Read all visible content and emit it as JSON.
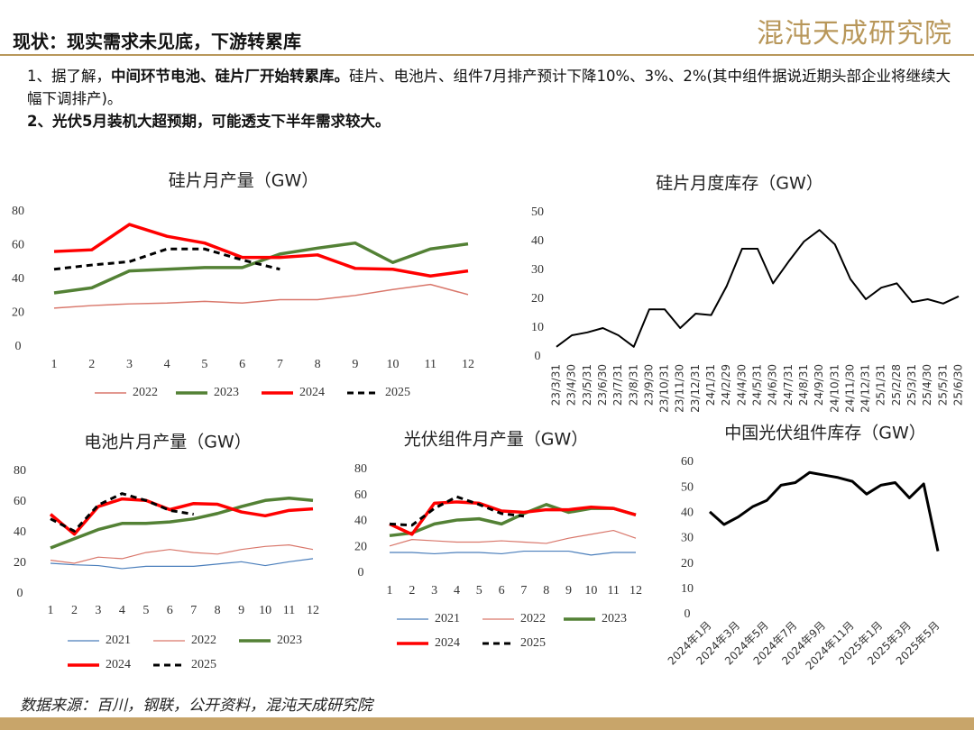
{
  "header": {
    "title": "现状：现实需求未见底，下游转累库",
    "logo": "混沌天成研究院"
  },
  "bullets": [
    {
      "parts": [
        {
          "text": "1、据了解，",
          "bold": false
        },
        {
          "text": "中间环节电池、硅片厂开始转累库。",
          "bold": true
        },
        {
          "text": "硅片、电池片、组件7月排产预计下降10%、3%、2%(其中组件据说近期头部企业将继续大幅下调排产)。",
          "bold": false
        }
      ]
    },
    {
      "parts": [
        {
          "text": "2、光伏5月装机大超预期，可能透支下半年需求较大。",
          "bold": true
        }
      ]
    }
  ],
  "source": "数据来源：百川，钢联，公开资料，混沌天成研究院",
  "chart_data": [
    {
      "type": "line",
      "title": "硅片月产量（GW）",
      "categories": [
        "1",
        "2",
        "3",
        "4",
        "5",
        "6",
        "7",
        "8",
        "9",
        "10",
        "11",
        "12"
      ],
      "ylim": [
        0,
        80
      ],
      "yticks": [
        0,
        20,
        40,
        60,
        80
      ],
      "series": [
        {
          "name": "2022",
          "color": "#d9776b",
          "values": [
            23,
            24.5,
            25.5,
            26,
            27,
            26,
            28,
            28,
            30.5,
            34,
            37,
            31
          ]
        },
        {
          "name": "2023",
          "color": "#538135",
          "values": [
            32,
            35,
            45,
            46,
            47,
            47,
            55,
            58.5,
            61.5,
            50,
            58,
            61
          ]
        },
        {
          "name": "2024",
          "color": "#ff0000",
          "values": [
            56.5,
            57.5,
            72.5,
            65.5,
            61.5,
            53,
            53,
            54.5,
            46.5,
            46,
            42,
            45
          ]
        },
        {
          "name": "2025",
          "color": "#000000",
          "dashed": true,
          "values": [
            46,
            48.5,
            50.5,
            58,
            58,
            51.5,
            46,
            null,
            null,
            null,
            null,
            null
          ]
        }
      ]
    },
    {
      "type": "line",
      "title": "硅片月度库存（GW）",
      "categories": [
        "23/3/31",
        "23/4/30",
        "23/5/31",
        "23/6/30",
        "23/7/31",
        "23/8/31",
        "23/9/30",
        "23/10/31",
        "23/11/30",
        "23/12/31",
        "24/1/31",
        "24/2/29",
        "24/4/30",
        "24/5/31",
        "24/6/30",
        "24/7/31",
        "24/8/31",
        "24/9/30",
        "24/10/31",
        "24/11/30",
        "24/12/31",
        "25/1/31",
        "25/2/28",
        "25/3/31",
        "25/4/30",
        "25/5/31",
        "25/6/30"
      ],
      "ylim": [
        0,
        50
      ],
      "yticks": [
        0,
        10,
        20,
        30,
        40,
        50
      ],
      "color": "#000000",
      "values": [
        3.5,
        7.5,
        8.5,
        10,
        7.5,
        3.5,
        16.5,
        16.5,
        10,
        15,
        14.5,
        24.5,
        37.5,
        37.5,
        25.5,
        33,
        40,
        44,
        39,
        27,
        20,
        24,
        25.5,
        19,
        20,
        18.5,
        21
      ]
    },
    {
      "type": "line",
      "title": "电池片月产量（GW）",
      "categories": [
        "1",
        "2",
        "3",
        "4",
        "5",
        "6",
        "7",
        "8",
        "9",
        "10",
        "11",
        "12"
      ],
      "ylim": [
        0,
        80
      ],
      "yticks": [
        0,
        20,
        40,
        60,
        80
      ],
      "series": [
        {
          "name": "2021",
          "color": "#4a7ebb",
          "values": [
            20,
            19,
            18.5,
            16.5,
            18,
            18,
            18,
            19.5,
            21,
            18.5,
            21,
            23
          ]
        },
        {
          "name": "2022",
          "color": "#d9776b",
          "values": [
            22,
            20,
            24,
            23,
            27,
            29,
            27,
            26,
            29,
            31,
            32,
            29
          ]
        },
        {
          "name": "2023",
          "color": "#538135",
          "values": [
            30,
            36,
            42,
            46,
            46,
            47,
            49,
            52.5,
            57,
            61,
            62.5,
            61
          ]
        },
        {
          "name": "2024",
          "color": "#ff0000",
          "values": [
            52,
            39,
            57,
            62,
            61,
            55,
            59,
            58.5,
            53.5,
            51,
            54.5,
            55.5
          ]
        },
        {
          "name": "2025",
          "color": "#000000",
          "dashed": true,
          "values": [
            49,
            41,
            58,
            65.5,
            61,
            54.5,
            52,
            null,
            null,
            null,
            null,
            null
          ]
        }
      ]
    },
    {
      "type": "line",
      "title": "光伏组件月产量（GW）",
      "categories": [
        "1",
        "2",
        "3",
        "4",
        "5",
        "6",
        "7",
        "8",
        "9",
        "10",
        "11",
        "12"
      ],
      "ylim": [
        0,
        80
      ],
      "yticks": [
        0,
        20,
        40,
        60,
        80
      ],
      "series": [
        {
          "name": "2021",
          "color": "#4a7ebb",
          "values": [
            16,
            16,
            15,
            16,
            16,
            15,
            17,
            17,
            17,
            14,
            16,
            16
          ]
        },
        {
          "name": "2022",
          "color": "#d9776b",
          "values": [
            21,
            26,
            25,
            24,
            24,
            25,
            24,
            23,
            27,
            30,
            33,
            27
          ]
        },
        {
          "name": "2023",
          "color": "#538135",
          "values": [
            29,
            31,
            38,
            41,
            42,
            38,
            46,
            53,
            47,
            50,
            50,
            45
          ]
        },
        {
          "name": "2024",
          "color": "#ff0000",
          "values": [
            38,
            30,
            54,
            55,
            54,
            48,
            47,
            49,
            49,
            51,
            50,
            45
          ]
        },
        {
          "name": "2025",
          "color": "#000000",
          "dashed": true,
          "values": [
            38,
            37,
            50,
            59,
            53,
            46,
            44,
            null,
            null,
            null,
            null,
            null
          ]
        }
      ]
    },
    {
      "type": "line",
      "title": "中国光伏组件库存（GW）",
      "categories": [
        "2024年1月",
        null,
        "2024年3月",
        null,
        "2024年5月",
        null,
        "2024年7月",
        null,
        "2024年9月",
        null,
        "2024年11月",
        null,
        "2025年1月",
        null,
        "2025年3月",
        null,
        "2025年5月"
      ],
      "ylim": [
        0,
        60
      ],
      "yticks": [
        0,
        10,
        20,
        30,
        40,
        50,
        60
      ],
      "color": "#000000",
      "values": [
        40.5,
        35.5,
        38.5,
        42.5,
        45,
        51,
        52,
        56,
        55,
        54,
        52.5,
        47.5,
        51,
        52,
        46,
        51.5,
        25
      ]
    }
  ]
}
